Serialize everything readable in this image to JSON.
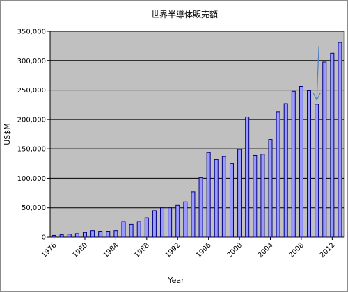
{
  "chart_data": {
    "type": "bar",
    "title": "世界半導体販売額",
    "xlabel": "Year",
    "ylabel": "US$M",
    "ylim": [
      0,
      350000
    ],
    "ytick_values": [
      0,
      50000,
      100000,
      150000,
      200000,
      250000,
      300000,
      350000
    ],
    "ytick_labels": [
      "0",
      "50,000",
      "100,000",
      "150,000",
      "200,000",
      "250,000",
      "300,000",
      "350,000"
    ],
    "x": [
      1976,
      1977,
      1978,
      1979,
      1980,
      1981,
      1982,
      1983,
      1984,
      1985,
      1986,
      1987,
      1988,
      1989,
      1990,
      1991,
      1992,
      1993,
      1994,
      1995,
      1996,
      1997,
      1998,
      1999,
      2000,
      2001,
      2002,
      2003,
      2004,
      2005,
      2006,
      2007,
      2008,
      2009,
      2010,
      2011,
      2012,
      2013
    ],
    "xtick_labels": [
      "1976",
      "1980",
      "1984",
      "1988",
      "1992",
      "1996",
      "2000",
      "2004",
      "2008",
      "2012"
    ],
    "values": [
      3000,
      4000,
      5000,
      6000,
      8000,
      11000,
      10000,
      10000,
      11000,
      26000,
      22000,
      26000,
      33000,
      45000,
      50000,
      50000,
      54000,
      60000,
      77000,
      101000,
      144000,
      132000,
      137000,
      125000,
      149000,
      204000,
      139000,
      141000,
      166000,
      213000,
      227000,
      248000,
      256000,
      249000,
      226000,
      298000,
      313000,
      331000
    ],
    "plot_background": "#c0c0c0",
    "bar_fill": "#9999ff",
    "bar_edge": "#000080",
    "grid": "horizontal",
    "annotation": "arrow pointing to 2010 bar",
    "annotation_color": "#4f81bd"
  }
}
